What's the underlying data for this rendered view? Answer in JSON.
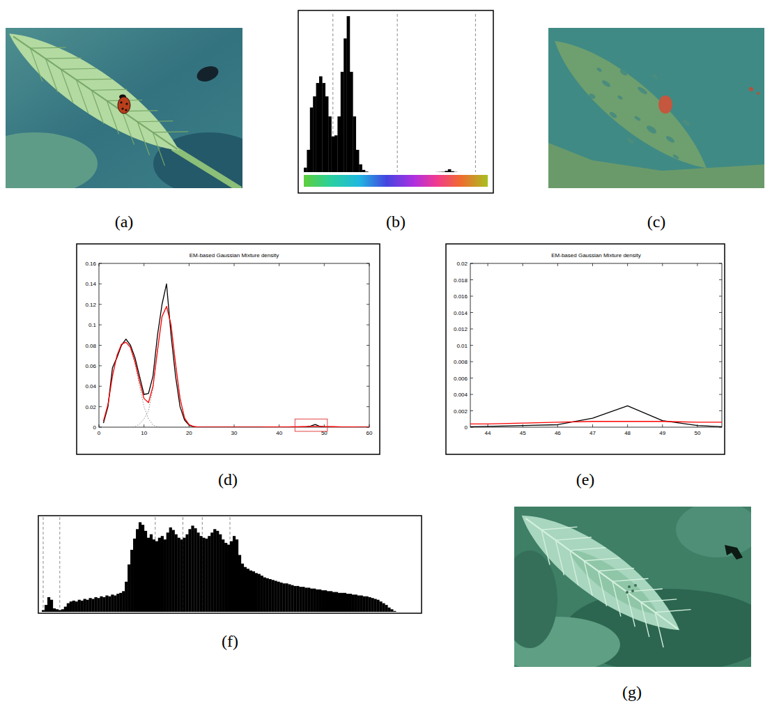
{
  "panels": {
    "a": "(a)",
    "b": "(b)",
    "c": "(c)",
    "d": "(d)",
    "e": "(e)",
    "f": "(f)",
    "g": "(g)"
  },
  "chart_data": [
    {
      "type": "histogram",
      "color": "#000000",
      "tick_labels": false,
      "xlim": [
        0,
        60
      ],
      "ylim": [
        0,
        0.142
      ],
      "bins": [
        0,
        1,
        2,
        3,
        4,
        5,
        6,
        7,
        8,
        9,
        10,
        11,
        12,
        13,
        14,
        15,
        16,
        17,
        18,
        19,
        20,
        21,
        22,
        23,
        24,
        25,
        26,
        27,
        28,
        29,
        30,
        31,
        32,
        33,
        34,
        35,
        36,
        37,
        38,
        39,
        40,
        41,
        42,
        43,
        44,
        45,
        46,
        47,
        48,
        49,
        50,
        51,
        52,
        53,
        54,
        55,
        56,
        57,
        58,
        59,
        60
      ],
      "counts": [
        0.004,
        0.02,
        0.058,
        0.068,
        0.08,
        0.086,
        0.08,
        0.068,
        0.05,
        0.032,
        0.033,
        0.05,
        0.09,
        0.12,
        0.14,
        0.09,
        0.05,
        0.02,
        0.007,
        0.002,
        0.0005,
        0,
        0,
        0,
        0,
        0,
        0,
        0,
        0,
        0,
        0,
        0,
        0,
        0,
        0,
        0,
        0,
        0,
        0,
        0,
        0,
        0,
        0,
        0.0001,
        0.0002,
        0.0003,
        0.0011,
        0.0026,
        0.0008,
        0.0002,
        0,
        0,
        0,
        0,
        0,
        0,
        0,
        0,
        0,
        0
      ],
      "thresholds": [
        9.5,
        30.5,
        56
      ]
    },
    {
      "type": "line",
      "title": "EM-based Gaussian Mixture density",
      "x": [
        1,
        2,
        3,
        4,
        5,
        6,
        7,
        8,
        9,
        10,
        11,
        12,
        13,
        14,
        15,
        16,
        17,
        18,
        19,
        20,
        21,
        22,
        23,
        24,
        25,
        26,
        27,
        28,
        29,
        30,
        31,
        32,
        33,
        34,
        35,
        36,
        37,
        38,
        39,
        40,
        41,
        42,
        43,
        44,
        45,
        46,
        47,
        48,
        49,
        50,
        51,
        52,
        53,
        54,
        55,
        56,
        57,
        58,
        59,
        60
      ],
      "series": [
        {
          "color": "#808080",
          "line_style": "dotted",
          "values": [
            0.006,
            0.022,
            0.05,
            0.07,
            0.081,
            0.083,
            0.077,
            0.062,
            0.04,
            0.02,
            0.008,
            0.002,
            0.0005,
            0,
            0,
            0,
            0,
            0,
            0,
            0,
            0,
            0,
            0,
            0,
            0,
            0,
            0,
            0,
            0,
            0,
            0,
            0,
            0,
            0,
            0,
            0,
            0,
            0,
            0,
            0,
            0,
            0,
            0,
            0,
            0,
            0,
            0,
            0,
            0,
            0,
            0,
            0,
            0,
            0,
            0,
            0,
            0,
            0,
            0,
            0
          ]
        },
        {
          "color": "#808080",
          "line_style": "dotted",
          "values": [
            0,
            0,
            0,
            0,
            0,
            0,
            0,
            0.0005,
            0.003,
            0.008,
            0.016,
            0.038,
            0.075,
            0.108,
            0.118,
            0.1,
            0.062,
            0.028,
            0.009,
            0.0025,
            0.0006,
            0,
            0,
            0,
            0,
            0,
            0,
            0,
            0,
            0,
            0,
            0,
            0,
            0,
            0,
            0,
            0,
            0,
            0,
            0,
            0,
            0,
            0,
            0,
            0,
            0,
            0,
            0,
            0,
            0,
            0,
            0,
            0,
            0,
            0,
            0,
            0,
            0,
            0,
            0
          ]
        },
        {
          "color": "#000000",
          "line_style": "solid",
          "values": [
            0.004,
            0.02,
            0.058,
            0.068,
            0.08,
            0.086,
            0.08,
            0.068,
            0.05,
            0.032,
            0.033,
            0.05,
            0.09,
            0.12,
            0.14,
            0.09,
            0.05,
            0.02,
            0.007,
            0.002,
            0.0005,
            0,
            0,
            0,
            0,
            0,
            0,
            0,
            0,
            0,
            0,
            0,
            0,
            0,
            0,
            0,
            0,
            0,
            0,
            0,
            0,
            0,
            0,
            0.0001,
            0.0002,
            0.0003,
            0.0011,
            0.0026,
            0.0008,
            0.0002,
            0,
            0,
            0,
            0,
            0,
            0,
            0,
            0,
            0,
            0
          ]
        },
        {
          "color": "#ff0000",
          "line_style": "solid",
          "values": [
            0.006,
            0.022,
            0.05,
            0.07,
            0.081,
            0.083,
            0.078,
            0.064,
            0.045,
            0.028,
            0.024,
            0.04,
            0.075,
            0.108,
            0.118,
            0.1,
            0.062,
            0.028,
            0.009,
            0.0025,
            0.0006,
            0.0002,
            0.0001,
            0.0001,
            0.0001,
            0.0001,
            0.0001,
            0.0001,
            0.0001,
            0.0001,
            0.0001,
            0.0001,
            0.0001,
            0.0001,
            0.0001,
            0.0001,
            0.0002,
            0.0002,
            0.0002,
            0.0003,
            0.0003,
            0.0003,
            0.0004,
            0.0004,
            0.0005,
            0.0006,
            0.0007,
            0.0007,
            0.0007,
            0.0006,
            0.0006,
            0.0005,
            0.0004,
            0.0003,
            0.0003,
            0.0002,
            0.0002,
            0.0001,
            0.0001,
            0.0001
          ]
        }
      ],
      "xlim": [
        0,
        60
      ],
      "xticks": [
        0,
        10,
        20,
        30,
        40,
        50,
        60
      ],
      "ylim": [
        0,
        0.16
      ],
      "yticks": [
        0,
        0.02,
        0.04,
        0.06,
        0.08,
        0.1,
        0.12,
        0.14,
        0.16
      ],
      "zoom_box": {
        "x": [
          43.5,
          50.7
        ],
        "y": [
          0,
          0.008
        ]
      }
    },
    {
      "type": "line",
      "title": "EM-based Gaussian Mixture density",
      "x": [
        43,
        44,
        45,
        46,
        47,
        48,
        49,
        50,
        51
      ],
      "series": [
        {
          "color": "#000000",
          "line_style": "solid",
          "values": [
            0,
            0.0001,
            0.0002,
            0.0003,
            0.0011,
            0.0026,
            0.0008,
            0.0002,
            0
          ]
        },
        {
          "color": "#ff0000",
          "line_style": "solid",
          "values": [
            0.0004,
            0.0004,
            0.0005,
            0.0006,
            0.0007,
            0.0007,
            0.0007,
            0.0006,
            0.0006
          ]
        }
      ],
      "xlim": [
        43.5,
        50.7
      ],
      "xticks": [
        44,
        45,
        46,
        47,
        48,
        49,
        50
      ],
      "ylim": [
        0,
        0.02
      ],
      "yticks": [
        0,
        0.002,
        0.004,
        0.006,
        0.008,
        0.01,
        0.012,
        0.014,
        0.016,
        0.018,
        0.02
      ]
    },
    {
      "type": "histogram",
      "color": "#000000",
      "tick_labels": false,
      "xlim": [
        0,
        136
      ],
      "ylim": [
        0,
        110
      ],
      "bins": [
        0,
        1,
        2,
        3,
        4,
        5,
        6,
        7,
        8,
        9,
        10,
        11,
        12,
        13,
        14,
        15,
        16,
        17,
        18,
        19,
        20,
        21,
        22,
        23,
        24,
        25,
        26,
        27,
        28,
        29,
        30,
        31,
        32,
        33,
        34,
        35,
        36,
        37,
        38,
        39,
        40,
        41,
        42,
        43,
        44,
        45,
        46,
        47,
        48,
        49,
        50,
        51,
        52,
        53,
        54,
        55,
        56,
        57,
        58,
        59,
        60,
        61,
        62,
        63,
        64,
        65,
        66,
        67,
        68,
        69,
        70,
        71,
        72,
        73,
        74,
        75,
        76,
        77,
        78,
        79,
        80,
        81,
        82,
        83,
        84,
        85,
        86,
        87,
        88,
        89,
        90,
        91,
        92,
        93,
        94,
        95,
        96,
        97,
        98,
        99,
        100,
        101,
        102,
        103,
        104,
        105,
        106,
        107,
        108,
        109,
        110,
        111,
        112,
        113,
        114,
        115,
        116,
        117,
        118,
        119,
        120,
        121,
        122,
        123,
        124,
        125,
        126,
        127,
        128
      ],
      "counts": [
        2,
        8,
        17,
        14,
        4,
        3,
        2,
        3,
        6,
        10,
        12,
        13,
        12,
        14,
        13,
        15,
        14,
        16,
        15,
        17,
        16,
        18,
        17,
        19,
        18,
        20,
        19,
        21,
        22,
        24,
        35,
        55,
        72,
        85,
        96,
        104,
        101,
        94,
        86,
        90,
        84,
        82,
        86,
        88,
        84,
        92,
        98,
        95,
        90,
        86,
        84,
        86,
        90,
        96,
        100,
        97,
        92,
        88,
        86,
        85,
        88,
        92,
        96,
        94,
        90,
        84,
        80,
        78,
        82,
        88,
        84,
        66,
        56,
        52,
        50,
        48,
        47,
        45,
        44,
        42,
        40,
        39,
        38,
        37,
        36,
        35,
        34,
        33,
        33,
        32,
        31,
        30,
        30,
        29,
        29,
        28,
        28,
        27,
        27,
        26,
        26,
        25,
        25,
        24,
        24,
        23,
        23,
        22,
        22,
        22,
        21,
        21,
        20,
        20,
        19,
        19,
        18,
        18,
        17,
        16,
        15,
        14,
        12,
        10,
        8,
        5,
        3,
        1
      ],
      "thresholds": [
        0.5,
        6.5,
        41,
        51,
        58,
        68
      ]
    }
  ]
}
